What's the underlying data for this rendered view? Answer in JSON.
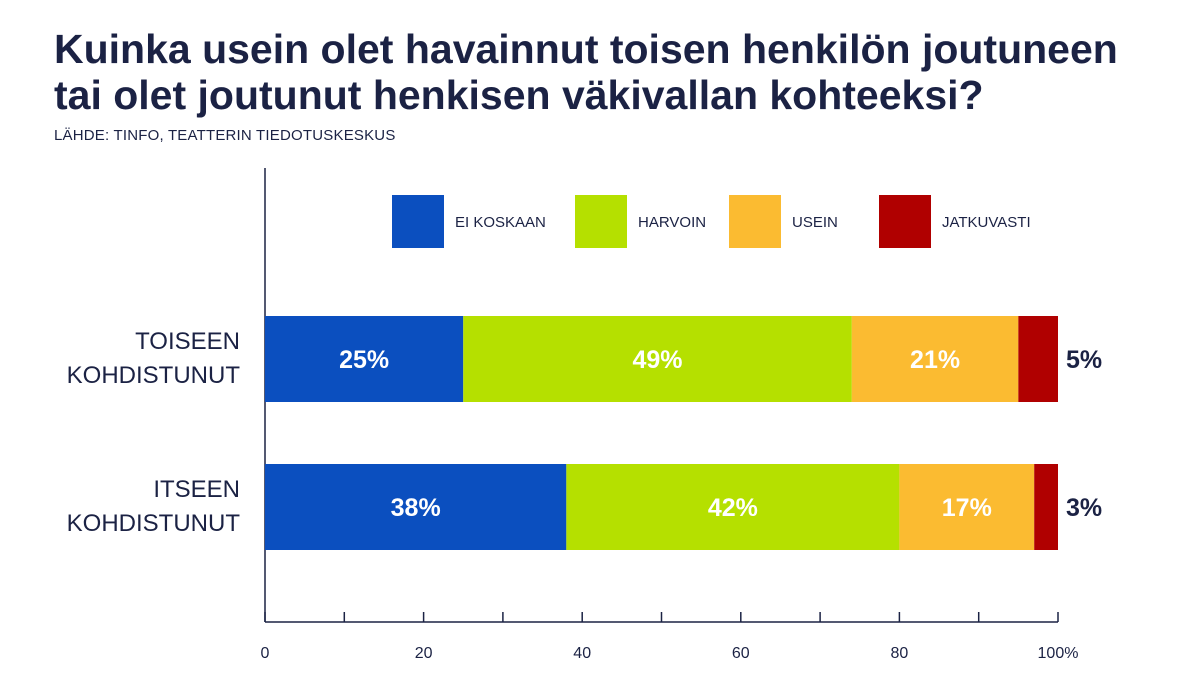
{
  "header": {
    "title": "Kuinka usein olet havainnut toisen henkilön joutuneen tai olet joutunut henkisen väkivallan kohteeksi?",
    "source": "LÄHDE: TINFO, TEATTERIN TIEDOTUSKESKUS"
  },
  "chart_data": {
    "type": "bar",
    "orientation": "horizontal",
    "stacked": true,
    "categories": [
      [
        "TOISEEN",
        "KOHDISTUNUT"
      ],
      [
        "ITSEEN",
        "KOHDISTUNUT"
      ]
    ],
    "series": [
      {
        "name": "EI KOSKAAN",
        "color": "#0b4fbf",
        "values": [
          25,
          38
        ],
        "labels": [
          "25%",
          "38%"
        ],
        "label_position": "inside"
      },
      {
        "name": "HARVOIN",
        "color": "#b5e000",
        "values": [
          49,
          42
        ],
        "labels": [
          "49%",
          "42%"
        ],
        "label_position": "inside"
      },
      {
        "name": "USEIN",
        "color": "#fbbb31",
        "values": [
          21,
          17
        ],
        "labels": [
          "21%",
          "17%"
        ],
        "label_position": "inside"
      },
      {
        "name": "JATKUVASTI",
        "color": "#b00000",
        "values": [
          5,
          3
        ],
        "labels": [
          "5%",
          "3%"
        ],
        "label_position": "outside"
      }
    ],
    "xlim": [
      0,
      100
    ],
    "xticks": [
      0,
      20,
      40,
      60,
      80,
      100
    ],
    "xtick_labels": [
      "0",
      "20",
      "40",
      "60",
      "80",
      "100%"
    ],
    "grid": false,
    "legend_position": "top"
  }
}
